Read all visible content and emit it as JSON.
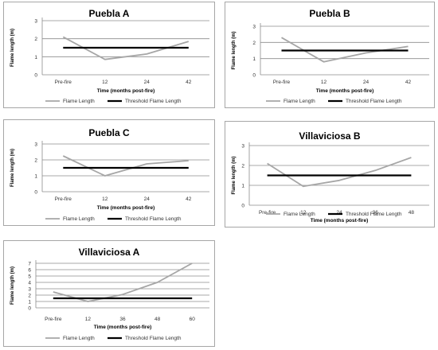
{
  "chart_data": [
    {
      "type": "line",
      "title": "Puebla A",
      "xlabel": "Time (months post-fire)",
      "ylabel": "Flame length (m)",
      "categories": [
        "Pre-fire",
        "12",
        "24",
        "42"
      ],
      "ylim": [
        0,
        3
      ],
      "yticks": [
        0,
        1,
        2,
        3
      ],
      "grid": true,
      "legend_position": "bottom",
      "series": [
        {
          "name": "Flame Length",
          "color": "#a6a6a6",
          "values": [
            2.1,
            0.85,
            1.15,
            1.85
          ]
        },
        {
          "name": "Threshold Flame Length",
          "color": "#000000",
          "values": [
            1.5,
            1.5,
            1.5,
            1.5
          ]
        }
      ]
    },
    {
      "type": "line",
      "title": "Puebla B",
      "xlabel": "Time (months post-fire)",
      "ylabel": "Flame length (m)",
      "categories": [
        "Pre-fire",
        "12",
        "24",
        "42"
      ],
      "ylim": [
        0,
        3
      ],
      "yticks": [
        0,
        1,
        2,
        3
      ],
      "grid": true,
      "legend_position": "bottom",
      "series": [
        {
          "name": "Flame Length",
          "color": "#a6a6a6",
          "values": [
            2.3,
            0.8,
            1.35,
            1.75
          ]
        },
        {
          "name": "Threshold Flame Length",
          "color": "#000000",
          "values": [
            1.5,
            1.5,
            1.5,
            1.5
          ]
        }
      ]
    },
    {
      "type": "line",
      "title": "Puebla C",
      "xlabel": "Time (months post-fire)",
      "ylabel": "Flame length (m)",
      "categories": [
        "Pre-fire",
        "12",
        "24",
        "42"
      ],
      "ylim": [
        0,
        3
      ],
      "yticks": [
        0,
        1,
        2,
        3
      ],
      "grid": true,
      "legend_position": "bottom",
      "series": [
        {
          "name": "Flame Length",
          "color": "#a6a6a6",
          "values": [
            2.25,
            1.0,
            1.75,
            1.95
          ]
        },
        {
          "name": "Threshold Flame Length",
          "color": "#000000",
          "values": [
            1.5,
            1.5,
            1.5,
            1.5
          ]
        }
      ]
    },
    {
      "type": "line",
      "title": "Villaviciosa B",
      "xlabel": "Time (months post-fire)",
      "ylabel": "Flame length (m)",
      "categories": [
        "Pre-fire",
        "12",
        "24",
        "36",
        "48"
      ],
      "ylim": [
        0,
        3
      ],
      "yticks": [
        0,
        1,
        2,
        3
      ],
      "grid": true,
      "legend_position": "bottom",
      "series": [
        {
          "name": "Flame Length",
          "color": "#a6a6a6",
          "values": [
            2.1,
            0.95,
            1.25,
            1.75,
            2.4
          ]
        },
        {
          "name": "Threshold Flame Length",
          "color": "#000000",
          "values": [
            1.5,
            1.5,
            1.5,
            1.5,
            1.5
          ]
        }
      ]
    },
    {
      "type": "line",
      "title": "Villaviciosa A",
      "xlabel": "Time (months post-fire)",
      "ylabel": "Flame length (m)",
      "categories": [
        "Pre-fire",
        "12",
        "36",
        "48",
        "60"
      ],
      "ylim": [
        0,
        7
      ],
      "yticks": [
        0,
        1,
        2,
        3,
        4,
        5,
        6,
        7
      ],
      "grid": true,
      "legend_position": "bottom",
      "series": [
        {
          "name": "Flame Length",
          "color": "#a6a6a6",
          "values": [
            2.5,
            1.0,
            2.1,
            4.0,
            7.0
          ]
        },
        {
          "name": "Threshold Flame Length",
          "color": "#000000",
          "values": [
            1.5,
            1.5,
            1.5,
            1.5,
            1.5
          ]
        }
      ]
    }
  ]
}
